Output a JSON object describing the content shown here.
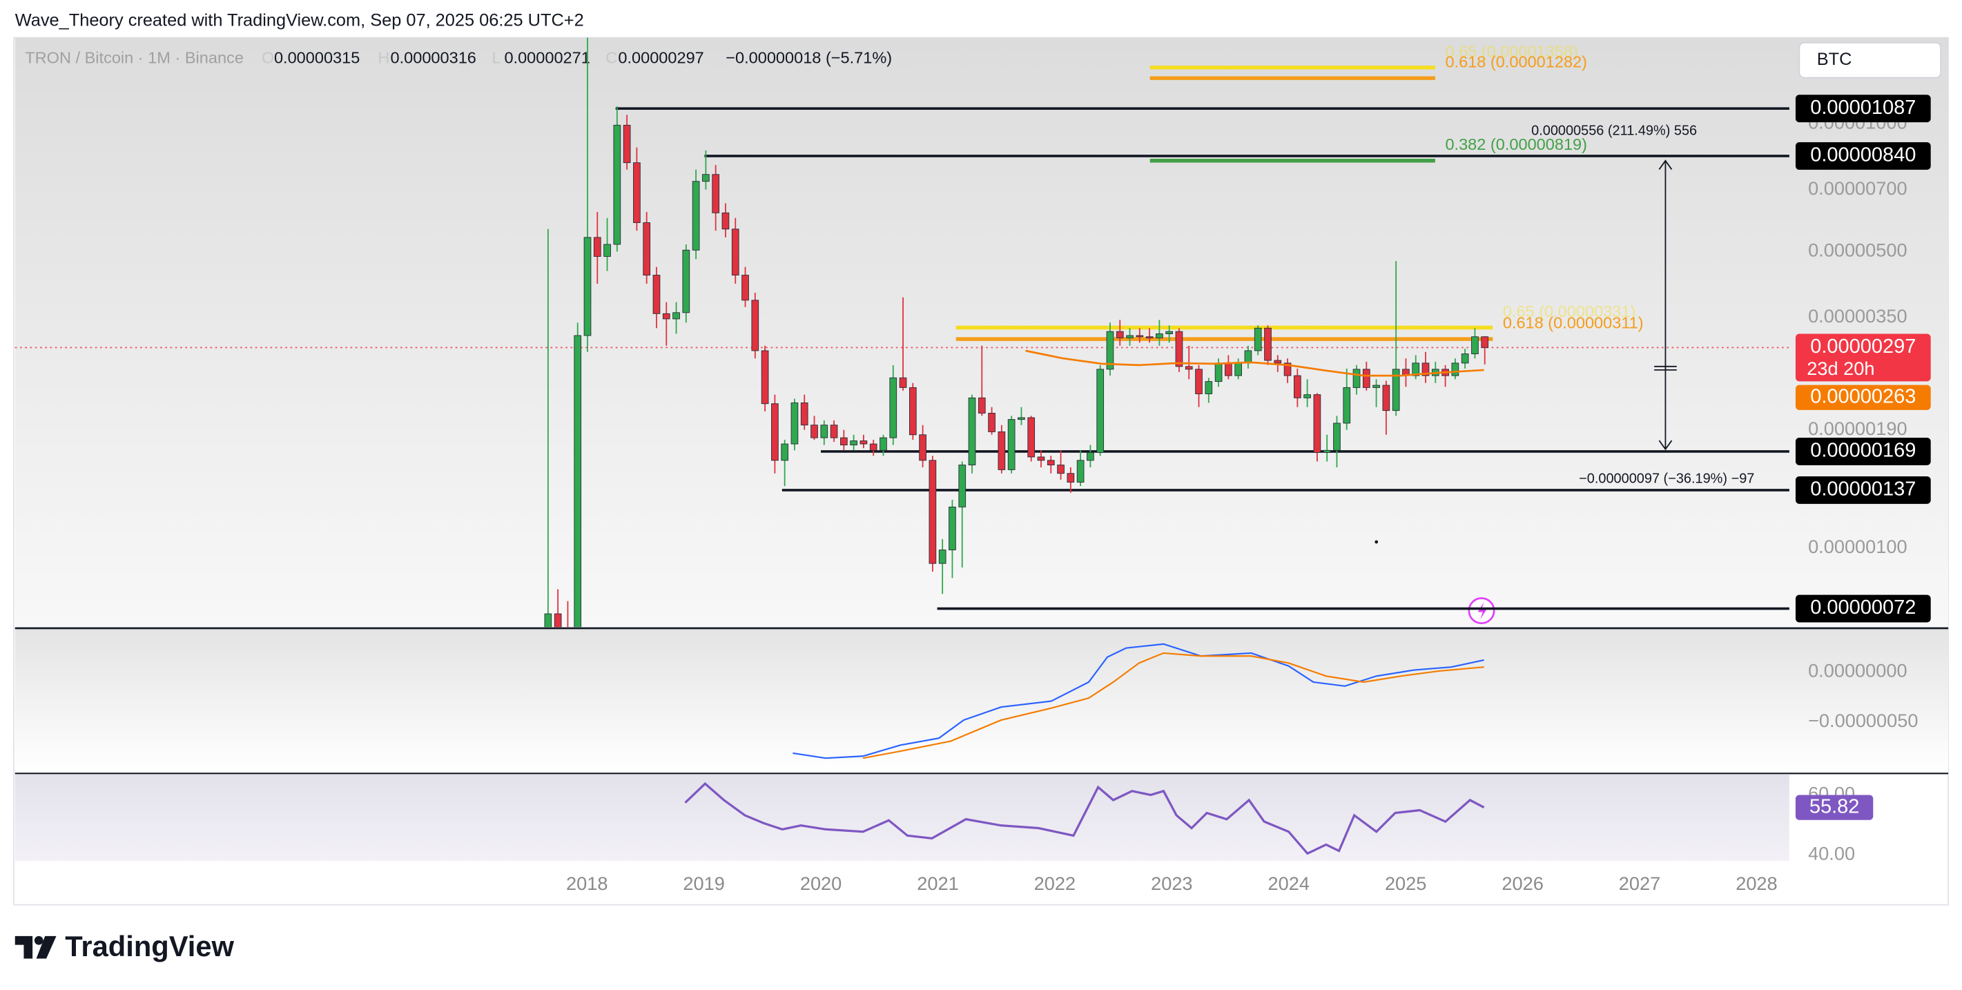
{
  "header": {
    "attribution": "Wave_Theory created with TradingView.com, Sep 07, 2025 06:25 UTC+2",
    "symbol": "TRON / Bitcoin · 1M · Binance",
    "ohlc": [
      {
        "key": "O",
        "value": "0.00000315"
      },
      {
        "key": "H",
        "value": "0.00000316"
      },
      {
        "key": "L",
        "value": "0.00000271"
      },
      {
        "key": "C",
        "value": "0.00000297"
      }
    ],
    "change": "−0.00000018 (−5.71%)",
    "currency": "BTC"
  },
  "chart_data": [
    {
      "type": "candlestick",
      "log_scale": true,
      "colors": {
        "up": "#2fa84f",
        "down": "#e0323f"
      },
      "open": [
        6.5e-07,
        7e-07,
        6.5e-07,
        6.2e-07,
        3.17e-06,
        5.4e-06,
        4.87e-06,
        5.2e-06,
        9.93e-06,
        8.1e-06,
        5.85e-06,
        4.4e-06,
        3.57e-06,
        3.47e-06,
        3.59e-06,
        5.04e-06,
        7.32e-06,
        7.6e-06,
        6.17e-06,
        5.65e-06,
        4.4e-06,
        3.84e-06,
        2.92e-06,
        2.19e-06,
        1.61e-06,
        1.76e-06,
        2.2e-06,
        1.95e-06,
        1.82e-06,
        1.95e-06,
        1.82e-06,
        1.75e-06,
        1.79e-06,
        1.76e-06,
        1.7e-06,
        1.82e-06,
        2.52e-06,
        2.39e-06,
        1.85e-06,
        1.61e-06,
        9.2e-07,
        9.9e-07,
        1.25e-06,
        1.57e-06,
        2.26e-06,
        2.08e-06,
        1.88e-06,
        1.53e-06,
        2.01e-06,
        2.03e-06,
        1.64e-06,
        1.61e-06,
        1.57e-06,
        1.5e-06,
        1.43e-06,
        1.61e-06,
        1.68e-06,
        2.64e-06,
        3.24e-06,
        3.13e-06,
        3.17e-06,
        3.15e-06,
        3.13e-06,
        3.2e-06,
        3.24e-06,
        2.68e-06,
        2.64e-06,
        2.31e-06,
        2.47e-06,
        2.73e-06,
        2.55e-06,
        2.73e-06,
        2.92e-06,
        3.3e-06,
        2.77e-06,
        2.73e-06,
        2.55e-06,
        2.26e-06,
        2.3e-06,
        1.68e-06,
        1.7e-06,
        1.97e-06,
        2.39e-06,
        2.64e-06,
        2.39e-06,
        2.42e-06,
        2.11e-06,
        2.64e-06,
        2.55e-06,
        2.73e-06,
        2.55e-06,
        2.64e-06,
        2.55e-06,
        2.73e-06,
        2.87e-06,
        3.15e-06
      ],
      "high": [
        5.65e-06,
        8e-07,
        7.5e-07,
        3.4e-06,
        1.6e-05,
        6.2e-06,
        6e-06,
        1.1e-05,
        1.05e-05,
        8.8e-06,
        6.2e-06,
        4.6e-06,
        3.8e-06,
        3.8e-06,
        5.2e-06,
        7.8e-06,
        8.66e-06,
        8e-06,
        6.5e-06,
        6e-06,
        4.6e-06,
        4e-06,
        3e-06,
        2.3e-06,
        1.8e-06,
        2.25e-06,
        2.3e-06,
        2.05e-06,
        2e-06,
        2e-06,
        1.9e-06,
        1.85e-06,
        1.85e-06,
        1.8e-06,
        1.85e-06,
        2.7e-06,
        3.9e-06,
        2.45e-06,
        1.95e-06,
        1.65e-06,
        1.05e-06,
        1.3e-06,
        1.6e-06,
        2.3e-06,
        3e-06,
        2.15e-06,
        1.95e-06,
        2.05e-06,
        2.15e-06,
        2.05e-06,
        1.7e-06,
        1.65e-06,
        1.7e-06,
        1.55e-06,
        1.7e-06,
        1.75e-06,
        2.7e-06,
        3.4e-06,
        3.45e-06,
        3.3e-06,
        3.3e-06,
        3.3e-06,
        3.45e-06,
        3.35e-06,
        3.3e-06,
        3e-06,
        2.7e-06,
        2.52e-06,
        2.8e-06,
        2.85e-06,
        2.8e-06,
        3e-06,
        3.35e-06,
        3.35e-06,
        2.85e-06,
        2.8e-06,
        2.65e-06,
        2.5e-06,
        2.32e-06,
        1.85e-06,
        2.05e-06,
        2.65e-06,
        2.7e-06,
        2.75e-06,
        2.5e-06,
        2.48e-06,
        4.75e-06,
        2.8e-06,
        2.85e-06,
        2.9e-06,
        2.75e-06,
        2.7e-06,
        2.8e-06,
        2.95e-06,
        3.3e-06,
        3.16e-06
      ],
      "low": [
        6e-07,
        5.5e-07,
        5.8e-07,
        5.8e-07,
        2.9e-06,
        4.2e-06,
        4.5e-06,
        5e-06,
        7.8e-06,
        5.6e-06,
        4.2e-06,
        3.3e-06,
        3e-06,
        3.2e-06,
        3.4e-06,
        4.8e-06,
        7e-06,
        5.6e-06,
        5.4e-06,
        4.2e-06,
        3.7e-06,
        2.8e-06,
        2.1e-06,
        1.5e-06,
        1.4e-06,
        1.7e-06,
        1.9e-06,
        1.8e-06,
        1.75e-06,
        1.78e-06,
        1.7e-06,
        1.7e-06,
        1.72e-06,
        1.65e-06,
        1.65e-06,
        1.75e-06,
        2.35e-06,
        1.8e-06,
        1.55e-06,
        8.8e-07,
        7.8e-07,
        8.5e-07,
        9e-07,
        1.5e-06,
        2.05e-06,
        1.85e-06,
        1.5e-06,
        1.5e-06,
        1.95e-06,
        1.6e-06,
        1.55e-06,
        1.5e-06,
        1.45e-06,
        1.35e-06,
        1.4e-06,
        1.55e-06,
        1.65e-06,
        2.55e-06,
        3e-06,
        3e-06,
        3.05e-06,
        3.05e-06,
        3e-06,
        3.05e-06,
        2.6e-06,
        2.5e-06,
        2.15e-06,
        2.2e-06,
        2.4e-06,
        2.5e-06,
        2.5e-06,
        2.65e-06,
        2.85e-06,
        2.7e-06,
        2.6e-06,
        2.45e-06,
        2.15e-06,
        2.15e-06,
        1.6e-06,
        1.6e-06,
        1.55e-06,
        1.9e-06,
        2.3e-06,
        2.35e-06,
        2.15e-06,
        1.85e-06,
        2.05e-06,
        2.4e-06,
        2.5e-06,
        2.45e-06,
        2.45e-06,
        2.4e-06,
        2.5e-06,
        2.65e-06,
        2.8e-06,
        2.71e-06
      ],
      "close": [
        7e-07,
        6.5e-07,
        6.2e-07,
        3.17e-06,
        5.4e-06,
        4.87e-06,
        5.2e-06,
        9.93e-06,
        8.1e-06,
        5.85e-06,
        4.4e-06,
        3.57e-06,
        3.47e-06,
        3.59e-06,
        5.04e-06,
        7.32e-06,
        7.6e-06,
        6.17e-06,
        5.65e-06,
        4.4e-06,
        3.84e-06,
        2.92e-06,
        2.19e-06,
        1.61e-06,
        1.76e-06,
        2.2e-06,
        1.95e-06,
        1.82e-06,
        1.95e-06,
        1.82e-06,
        1.75e-06,
        1.79e-06,
        1.76e-06,
        1.7e-06,
        1.82e-06,
        2.52e-06,
        2.39e-06,
        1.85e-06,
        1.61e-06,
        9.2e-07,
        9.9e-07,
        1.25e-06,
        1.57e-06,
        2.26e-06,
        2.08e-06,
        1.88e-06,
        1.53e-06,
        2.01e-06,
        2.03e-06,
        1.64e-06,
        1.61e-06,
        1.57e-06,
        1.5e-06,
        1.43e-06,
        1.61e-06,
        1.68e-06,
        2.64e-06,
        3.24e-06,
        3.13e-06,
        3.17e-06,
        3.15e-06,
        3.13e-06,
        3.2e-06,
        3.24e-06,
        2.68e-06,
        2.64e-06,
        2.31e-06,
        2.47e-06,
        2.73e-06,
        2.55e-06,
        2.73e-06,
        2.92e-06,
        3.3e-06,
        2.77e-06,
        2.73e-06,
        2.55e-06,
        2.26e-06,
        2.3e-06,
        1.68e-06,
        1.7e-06,
        1.97e-06,
        2.39e-06,
        2.64e-06,
        2.39e-06,
        2.42e-06,
        2.11e-06,
        2.64e-06,
        2.55e-06,
        2.73e-06,
        2.55e-06,
        2.64e-06,
        2.55e-06,
        2.73e-06,
        2.87e-06,
        3.15e-06,
        2.97e-06
      ],
      "ema": {
        "color": "#f57c00",
        "x": [
          2021.75,
          2022.07,
          2022.4,
          2022.72,
          2023.04,
          2023.36,
          2023.68,
          2024.0,
          2024.32,
          2024.64,
          2024.96,
          2025.28,
          2025.67
        ],
        "values": [
          2.92e-06,
          2.8e-06,
          2.72e-06,
          2.7e-06,
          2.73e-06,
          2.72e-06,
          2.74e-06,
          2.7e-06,
          2.62e-06,
          2.55e-06,
          2.55e-06,
          2.59e-06,
          2.63e-06
        ]
      },
      "ylim": [
        6.56e-07,
        1.597e-05
      ],
      "yticks": [
        {
          "value": 1e-06,
          "label": "0.00000100"
        },
        {
          "value": 1.9e-06,
          "label": "0.00000190"
        },
        {
          "value": 3.5e-06,
          "label": "0.00000350"
        },
        {
          "value": 5e-06,
          "label": "0.00000500"
        },
        {
          "value": 7e-06,
          "label": "0.00000700"
        },
        {
          "value": 1e-05,
          "label": "0.00001000"
        }
      ],
      "xlim": [
        2013.11,
        2028.28
      ],
      "xticks": [
        2018,
        2019,
        2020,
        2021,
        2022,
        2023,
        2024,
        2025,
        2026,
        2027,
        2028
      ],
      "levels": [
        {
          "value": 1.087e-05,
          "label": "0.00001087"
        },
        {
          "value": 8.4e-06,
          "label": "0.00000840"
        },
        {
          "value": 1.69e-06,
          "label": "0.00000169"
        },
        {
          "value": 1.37e-06,
          "label": "0.00000137"
        },
        {
          "value": 7.2e-07,
          "label": "0.00000072"
        }
      ],
      "last_price": {
        "value": 2.97e-06,
        "label": "0.00000297",
        "countdown": "23d 20h",
        "color": "#f23645"
      },
      "ema_label": {
        "value": 2.63e-06,
        "label": "0.00000263",
        "color": "#f57c00"
      },
      "fib_levels": [
        {
          "value": 1.358e-05,
          "label": "0.65 (0.00001358)",
          "color": "#f5dc1e"
        },
        {
          "value": 1.282e-05,
          "label": "0.618 (0.00001282)",
          "color": "#f59d1a"
        },
        {
          "value": 8.19e-06,
          "label": "0.382 (0.00000819)",
          "color": "#43a047"
        },
        {
          "value": 3.31e-06,
          "label": "0.65 (0.00000331)",
          "color": "#f5dc1e"
        },
        {
          "value": 3.11e-06,
          "label": "0.618 (0.00000311)",
          "color": "#f59d1a"
        }
      ],
      "measurements": [
        {
          "label": "0.00000556 (211.49%) 556",
          "from": 2.63e-06,
          "to": 8.19e-06
        },
        {
          "label": "−0.00000097 (−36.19%) −97",
          "from": 2.68e-06,
          "to": 1.71e-06
        }
      ]
    },
    {
      "type": "line",
      "ylim": [
        -1e-06,
        4.25e-07
      ],
      "yticks": [
        {
          "value": 0,
          "label": "0.00000000"
        },
        {
          "value": -5e-07,
          "label": "−0.00000050"
        }
      ],
      "series": [
        {
          "color": "#2962ff",
          "x": [
            2019.76,
            2020.04,
            2020.36,
            2020.68,
            2021.01,
            2021.22,
            2021.54,
            2021.97,
            2022.29,
            2022.45,
            2022.61,
            2022.93,
            2023.25,
            2023.68,
            2024.0,
            2024.21,
            2024.48,
            2024.75,
            2025.07,
            2025.39,
            2025.67
          ],
          "values": [
            -8.1e-07,
            -8.6e-07,
            -8.4e-07,
            -7.3e-07,
            -6.6e-07,
            -4.8e-07,
            -3.5e-07,
            -2.9e-07,
            -1e-07,
            1.5e-07,
            2.4e-07,
            2.8e-07,
            1.6e-07,
            1.9e-07,
            6e-08,
            -1e-07,
            -1.4e-07,
            -4e-08,
            2e-08,
            5e-08,
            1.2e-07
          ]
        },
        {
          "color": "#f57c00",
          "x": [
            2020.36,
            2020.68,
            2021.11,
            2021.54,
            2021.97,
            2022.29,
            2022.5,
            2022.72,
            2022.93,
            2023.25,
            2023.68,
            2024.0,
            2024.32,
            2024.64,
            2024.96,
            2025.28,
            2025.67
          ],
          "values": [
            -8.6e-07,
            -7.9e-07,
            -6.9e-07,
            -4.8e-07,
            -3.6e-07,
            -2.6e-07,
            -1e-07,
            9e-08,
            1.9e-07,
            1.6e-07,
            1.6e-07,
            9e-08,
            -4e-08,
            -1e-07,
            -4e-08,
            1e-08,
            5e-08
          ]
        }
      ]
    },
    {
      "type": "line",
      "ylim": [
        37.9,
        66.8
      ],
      "yticks": [
        {
          "value": 40,
          "label": "40.00"
        },
        {
          "value": 60,
          "label": "60.00"
        }
      ],
      "series": [
        {
          "color": "#7e57c2",
          "x": [
            2018.84,
            2019.01,
            2019.17,
            2019.35,
            2019.51,
            2019.67,
            2019.83,
            2020.04,
            2020.36,
            2020.58,
            2020.74,
            2020.95,
            2021.24,
            2021.54,
            2021.86,
            2022.16,
            2022.37,
            2022.5,
            2022.66,
            2022.82,
            2022.93,
            2023.04,
            2023.17,
            2023.3,
            2023.47,
            2023.66,
            2023.79,
            2024.0,
            2024.16,
            2024.32,
            2024.43,
            2024.56,
            2024.75,
            2024.91,
            2025.12,
            2025.34,
            2025.55,
            2025.67
          ],
          "values": [
            57.4,
            63.8,
            58.3,
            53.2,
            50.6,
            48.5,
            49.8,
            48.5,
            47.7,
            51.5,
            46.4,
            45.5,
            51.9,
            49.8,
            48.9,
            46.4,
            62.6,
            58.3,
            61.3,
            60.0,
            61.3,
            53.2,
            48.9,
            54.0,
            51.9,
            58.3,
            51.1,
            47.7,
            40.4,
            43.4,
            41.3,
            53.2,
            47.7,
            54.0,
            54.9,
            51.1,
            58.3,
            55.82
          ]
        }
      ]
    }
  ],
  "footer": {
    "logo": "TradingView"
  }
}
